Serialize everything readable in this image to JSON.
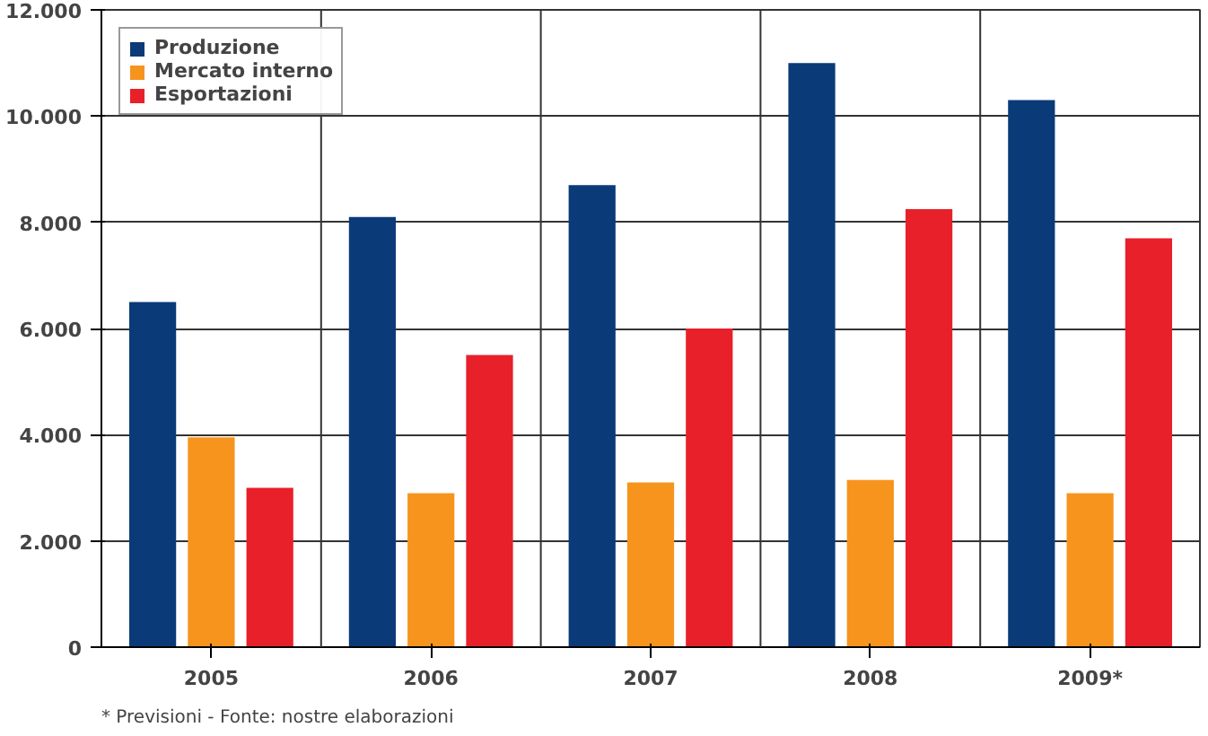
{
  "chart_data": {
    "type": "bar",
    "categories": [
      "2005",
      "2006",
      "2007",
      "2008",
      "2009*"
    ],
    "series": [
      {
        "name": "Produzione",
        "color": "#0b3a78",
        "values": [
          6500,
          8100,
          8700,
          11000,
          10300
        ]
      },
      {
        "name": "Mercato interno",
        "color": "#f7941d",
        "values": [
          3950,
          2900,
          3100,
          3150,
          2900
        ]
      },
      {
        "name": "Esportazioni",
        "color": "#e8202a",
        "values": [
          3000,
          5500,
          6000,
          8250,
          7700
        ]
      }
    ],
    "ylim": [
      0,
      12000
    ],
    "yticks": [
      {
        "value": 0,
        "label": "0"
      },
      {
        "value": 2000,
        "label": "2.000"
      },
      {
        "value": 4000,
        "label": "4.000"
      },
      {
        "value": 6000,
        "label": "6.000"
      },
      {
        "value": 8000,
        "label": "8.000"
      },
      {
        "value": 10000,
        "label": "10.000"
      },
      {
        "value": 12000,
        "label": "12.000"
      }
    ],
    "grid": true,
    "legend": "top left",
    "annotations": [
      "* Previsioni - Fonte: nostre elaborazioni"
    ]
  }
}
